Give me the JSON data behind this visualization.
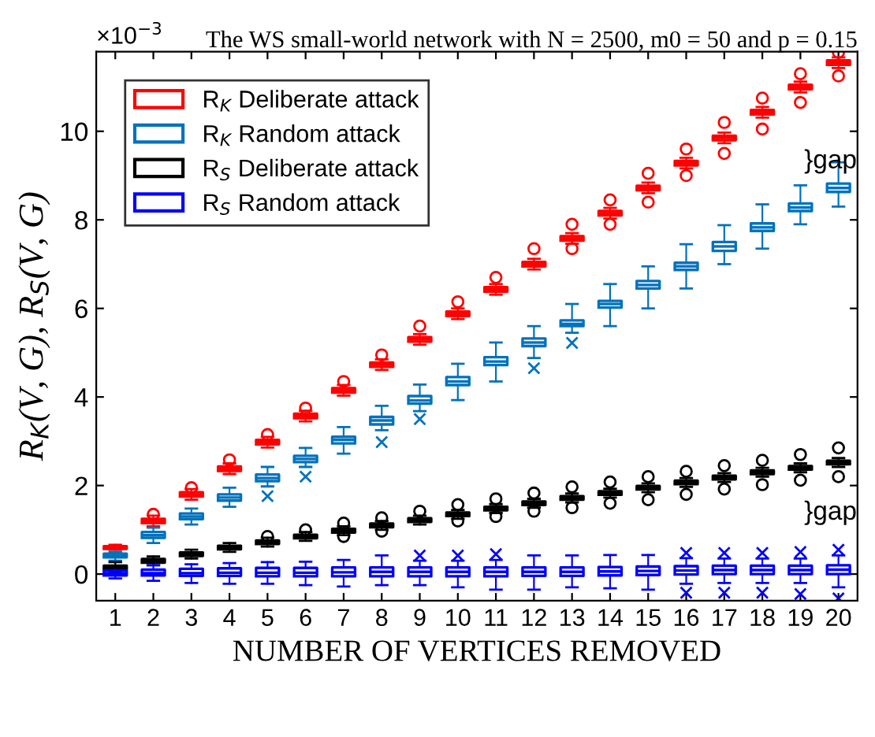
{
  "chart_data": {
    "type": "box",
    "title": "The WS small-world network with N = 2500, m0 = 50 and p = 0.15",
    "xlabel": "NUMBER OF VERTICES REMOVED",
    "ylabel": "R$_{K}$(V, G), R$_{S}$(V, G)",
    "categories": [
      "1",
      "2",
      "3",
      "4",
      "5",
      "6",
      "7",
      "8",
      "9",
      "10",
      "11",
      "12",
      "13",
      "14",
      "15",
      "16",
      "17",
      "18",
      "19",
      "20"
    ],
    "ylim": [
      -0.6,
      11.8
    ],
    "yticks": [
      0,
      2,
      4,
      6,
      8,
      10
    ],
    "legend": "top left",
    "annotations": [
      "×10$^{−3}$",
      "}gap",
      "}gap"
    ],
    "series": [
      {
        "name": "R$_{K}$ Deliberate attack",
        "color": "#ff0000",
        "marker": "circle",
        "boxes": [
          {
            "low": 0.55,
            "q1": 0.57,
            "median": 0.6,
            "q3": 0.63,
            "high": 0.66
          },
          {
            "low": 1.08,
            "q1": 1.15,
            "median": 1.2,
            "q3": 1.25,
            "high": 1.32,
            "outliers": [
              1.35
            ]
          },
          {
            "low": 1.68,
            "q1": 1.75,
            "median": 1.8,
            "q3": 1.85,
            "high": 1.92,
            "outliers": [
              1.95
            ]
          },
          {
            "low": 2.26,
            "q1": 2.33,
            "median": 2.38,
            "q3": 2.43,
            "high": 2.5,
            "outliers": [
              2.58
            ]
          },
          {
            "low": 2.86,
            "q1": 2.93,
            "median": 2.98,
            "q3": 3.03,
            "high": 3.1,
            "outliers": [
              3.15
            ]
          },
          {
            "low": 3.45,
            "q1": 3.52,
            "median": 3.57,
            "q3": 3.62,
            "high": 3.69,
            "outliers": [
              3.75
            ]
          },
          {
            "low": 4.03,
            "q1": 4.1,
            "median": 4.15,
            "q3": 4.2,
            "high": 4.27,
            "outliers": [
              4.35
            ]
          },
          {
            "low": 4.61,
            "q1": 4.68,
            "median": 4.73,
            "q3": 4.78,
            "high": 4.85,
            "outliers": [
              4.95
            ]
          },
          {
            "low": 5.18,
            "q1": 5.25,
            "median": 5.3,
            "q3": 5.35,
            "high": 5.42,
            "outliers": [
              5.6
            ]
          },
          {
            "low": 5.76,
            "q1": 5.83,
            "median": 5.88,
            "q3": 5.93,
            "high": 6.0,
            "outliers": [
              6.15
            ]
          },
          {
            "low": 6.31,
            "q1": 6.38,
            "median": 6.43,
            "q3": 6.48,
            "high": 6.55,
            "outliers": [
              6.7
            ]
          },
          {
            "low": 6.88,
            "q1": 6.95,
            "median": 7.0,
            "q3": 7.05,
            "high": 7.12,
            "outliers": [
              7.35
            ]
          },
          {
            "low": 7.46,
            "q1": 7.53,
            "median": 7.58,
            "q3": 7.63,
            "high": 7.7,
            "outliers": [
              7.9,
              7.35
            ]
          },
          {
            "low": 8.03,
            "q1": 8.1,
            "median": 8.15,
            "q3": 8.2,
            "high": 8.27,
            "outliers": [
              8.45,
              7.9
            ]
          },
          {
            "low": 8.6,
            "q1": 8.67,
            "median": 8.72,
            "q3": 8.77,
            "high": 8.84,
            "outliers": [
              9.05,
              8.4
            ]
          },
          {
            "low": 9.16,
            "q1": 9.23,
            "median": 9.28,
            "q3": 9.33,
            "high": 9.4,
            "outliers": [
              9.6,
              9.0
            ]
          },
          {
            "low": 9.73,
            "q1": 9.8,
            "median": 9.85,
            "q3": 9.9,
            "high": 9.97,
            "outliers": [
              10.2,
              9.5
            ]
          },
          {
            "low": 10.31,
            "q1": 10.38,
            "median": 10.43,
            "q3": 10.48,
            "high": 10.55,
            "outliers": [
              10.75,
              10.05
            ]
          },
          {
            "low": 10.88,
            "q1": 10.95,
            "median": 11.0,
            "q3": 11.05,
            "high": 11.12,
            "outliers": [
              11.3,
              10.65
            ]
          },
          {
            "low": 11.43,
            "q1": 11.5,
            "median": 11.55,
            "q3": 11.6,
            "high": 11.67,
            "outliers": [
              11.78,
              11.25
            ]
          }
        ]
      },
      {
        "name": "R$_{K}$ Random attack",
        "color": "#0072bd",
        "marker": "cross",
        "boxes": [
          {
            "low": 0.3,
            "q1": 0.38,
            "median": 0.42,
            "q3": 0.46,
            "high": 0.5
          },
          {
            "low": 0.7,
            "q1": 0.82,
            "median": 0.88,
            "q3": 0.95,
            "high": 1.05
          },
          {
            "low": 1.12,
            "q1": 1.24,
            "median": 1.3,
            "q3": 1.37,
            "high": 1.48
          },
          {
            "low": 1.52,
            "q1": 1.66,
            "median": 1.73,
            "q3": 1.8,
            "high": 1.95
          },
          {
            "low": 1.98,
            "q1": 2.1,
            "median": 2.17,
            "q3": 2.25,
            "high": 2.42,
            "outliers": [
              1.76
            ]
          },
          {
            "low": 2.42,
            "q1": 2.53,
            "median": 2.6,
            "q3": 2.67,
            "high": 2.85,
            "outliers": [
              2.2
            ]
          },
          {
            "low": 2.72,
            "q1": 2.95,
            "median": 3.03,
            "q3": 3.1,
            "high": 3.32
          },
          {
            "low": 3.25,
            "q1": 3.38,
            "median": 3.47,
            "q3": 3.55,
            "high": 3.8,
            "outliers": [
              2.98
            ]
          },
          {
            "low": 3.68,
            "q1": 3.85,
            "median": 3.92,
            "q3": 4.02,
            "high": 4.28,
            "outliers": [
              3.5
            ]
          },
          {
            "low": 3.93,
            "q1": 4.27,
            "median": 4.35,
            "q3": 4.45,
            "high": 4.75
          },
          {
            "low": 4.35,
            "q1": 4.72,
            "median": 4.8,
            "q3": 4.9,
            "high": 5.23
          },
          {
            "low": 4.88,
            "q1": 5.15,
            "median": 5.23,
            "q3": 5.32,
            "high": 5.6,
            "outliers": [
              4.65
            ]
          },
          {
            "low": 5.45,
            "q1": 5.6,
            "median": 5.65,
            "q3": 5.73,
            "high": 6.1,
            "outliers": [
              5.22
            ]
          },
          {
            "low": 5.6,
            "q1": 6.02,
            "median": 6.1,
            "q3": 6.17,
            "high": 6.55
          },
          {
            "low": 6.0,
            "q1": 6.45,
            "median": 6.53,
            "q3": 6.62,
            "high": 6.95
          },
          {
            "low": 6.45,
            "q1": 6.87,
            "median": 6.95,
            "q3": 7.03,
            "high": 7.45
          },
          {
            "low": 7.0,
            "q1": 7.3,
            "median": 7.4,
            "q3": 7.5,
            "high": 7.88
          },
          {
            "low": 7.35,
            "q1": 7.75,
            "median": 7.83,
            "q3": 7.92,
            "high": 8.35
          },
          {
            "low": 7.9,
            "q1": 8.2,
            "median": 8.28,
            "q3": 8.37,
            "high": 8.78
          },
          {
            "low": 8.3,
            "q1": 8.63,
            "median": 8.72,
            "q3": 8.82,
            "high": 9.3
          }
        ]
      },
      {
        "name": "R$_{S}$ Deliberate attack",
        "color": "#000000",
        "marker": "circle",
        "boxes": [
          {
            "low": 0.03,
            "q1": 0.11,
            "median": 0.15,
            "q3": 0.19,
            "high": 0.27
          },
          {
            "low": 0.2,
            "q1": 0.26,
            "median": 0.3,
            "q3": 0.34,
            "high": 0.4
          },
          {
            "low": 0.35,
            "q1": 0.41,
            "median": 0.45,
            "q3": 0.49,
            "high": 0.55
          },
          {
            "low": 0.5,
            "q1": 0.56,
            "median": 0.6,
            "q3": 0.64,
            "high": 0.7
          },
          {
            "low": 0.62,
            "q1": 0.68,
            "median": 0.72,
            "q3": 0.76,
            "high": 0.82,
            "outliers": [
              0.85
            ]
          },
          {
            "low": 0.75,
            "q1": 0.81,
            "median": 0.85,
            "q3": 0.89,
            "high": 0.95,
            "outliers": [
              1.0
            ]
          },
          {
            "low": 0.88,
            "q1": 0.94,
            "median": 0.98,
            "q3": 1.02,
            "high": 1.08,
            "outliers": [
              1.15,
              0.85
            ]
          },
          {
            "low": 1.0,
            "q1": 1.06,
            "median": 1.1,
            "q3": 1.14,
            "high": 1.2,
            "outliers": [
              1.27,
              0.97
            ]
          },
          {
            "low": 1.12,
            "q1": 1.18,
            "median": 1.22,
            "q3": 1.26,
            "high": 1.32,
            "outliers": [
              1.42
            ]
          },
          {
            "low": 1.25,
            "q1": 1.31,
            "median": 1.35,
            "q3": 1.39,
            "high": 1.45,
            "outliers": [
              1.57,
              1.2
            ]
          },
          {
            "low": 1.38,
            "q1": 1.44,
            "median": 1.48,
            "q3": 1.52,
            "high": 1.58,
            "outliers": [
              1.7,
              1.3
            ]
          },
          {
            "low": 1.5,
            "q1": 1.56,
            "median": 1.6,
            "q3": 1.64,
            "high": 1.7,
            "outliers": [
              1.83,
              1.42
            ]
          },
          {
            "low": 1.62,
            "q1": 1.68,
            "median": 1.72,
            "q3": 1.76,
            "high": 1.82,
            "outliers": [
              1.97,
              1.5
            ]
          },
          {
            "low": 1.73,
            "q1": 1.79,
            "median": 1.83,
            "q3": 1.87,
            "high": 1.93,
            "outliers": [
              2.08,
              1.6
            ]
          },
          {
            "low": 1.85,
            "q1": 1.91,
            "median": 1.95,
            "q3": 1.99,
            "high": 2.05,
            "outliers": [
              2.2,
              1.68
            ]
          },
          {
            "low": 1.97,
            "q1": 2.03,
            "median": 2.07,
            "q3": 2.11,
            "high": 2.17,
            "outliers": [
              2.32,
              1.8
            ]
          },
          {
            "low": 2.08,
            "q1": 2.14,
            "median": 2.18,
            "q3": 2.22,
            "high": 2.28,
            "outliers": [
              2.45,
              1.92
            ]
          },
          {
            "low": 2.2,
            "q1": 2.26,
            "median": 2.3,
            "q3": 2.34,
            "high": 2.4,
            "outliers": [
              2.57,
              2.02
            ]
          },
          {
            "low": 2.3,
            "q1": 2.36,
            "median": 2.4,
            "q3": 2.44,
            "high": 2.5,
            "outliers": [
              2.7,
              2.12
            ]
          },
          {
            "low": 2.42,
            "q1": 2.48,
            "median": 2.52,
            "q3": 2.56,
            "high": 2.62,
            "outliers": [
              2.85,
              2.2
            ]
          }
        ]
      },
      {
        "name": "R$_{S}$ Random attack",
        "color": "#0000ff",
        "marker": "cross",
        "boxes": [
          {
            "low": -0.1,
            "q1": -0.03,
            "median": 0.02,
            "q3": 0.08,
            "high": 0.15
          },
          {
            "low": -0.15,
            "q1": -0.03,
            "median": 0.02,
            "q3": 0.1,
            "high": 0.2
          },
          {
            "low": -0.2,
            "q1": -0.04,
            "median": 0.02,
            "q3": 0.12,
            "high": 0.22
          },
          {
            "low": -0.22,
            "q1": -0.04,
            "median": 0.03,
            "q3": 0.13,
            "high": 0.25
          },
          {
            "low": -0.22,
            "q1": -0.05,
            "median": 0.03,
            "q3": 0.14,
            "high": 0.27
          },
          {
            "low": -0.25,
            "q1": -0.05,
            "median": 0.03,
            "q3": 0.14,
            "high": 0.28
          },
          {
            "low": -0.28,
            "q1": -0.05,
            "median": 0.04,
            "q3": 0.15,
            "high": 0.32
          },
          {
            "low": -0.25,
            "q1": -0.05,
            "median": 0.05,
            "q3": 0.15,
            "high": 0.42
          },
          {
            "low": -0.25,
            "q1": -0.05,
            "median": 0.05,
            "q3": 0.15,
            "high": 0.3,
            "outliers": [
              0.42
            ]
          },
          {
            "low": -0.3,
            "q1": -0.05,
            "median": 0.05,
            "q3": 0.15,
            "high": 0.3,
            "outliers": [
              0.42
            ]
          },
          {
            "low": -0.35,
            "q1": -0.05,
            "median": 0.05,
            "q3": 0.15,
            "high": 0.32,
            "outliers": [
              0.45
            ]
          },
          {
            "low": -0.35,
            "q1": -0.04,
            "median": 0.05,
            "q3": 0.15,
            "high": 0.42
          },
          {
            "low": -0.3,
            "q1": -0.04,
            "median": 0.05,
            "q3": 0.15,
            "high": 0.42
          },
          {
            "low": -0.32,
            "q1": -0.03,
            "median": 0.06,
            "q3": 0.16,
            "high": 0.43
          },
          {
            "low": -0.35,
            "q1": -0.02,
            "median": 0.07,
            "q3": 0.17,
            "high": 0.43
          },
          {
            "low": -0.22,
            "q1": -0.01,
            "median": 0.08,
            "q3": 0.18,
            "high": 0.36,
            "outliers": [
              0.48,
              -0.42
            ]
          },
          {
            "low": -0.2,
            "q1": 0.0,
            "median": 0.09,
            "q3": 0.19,
            "high": 0.35,
            "outliers": [
              0.48,
              -0.42
            ]
          },
          {
            "low": -0.2,
            "q1": 0.0,
            "median": 0.09,
            "q3": 0.19,
            "high": 0.35,
            "outliers": [
              0.48,
              -0.42
            ]
          },
          {
            "low": -0.2,
            "q1": 0.0,
            "median": 0.09,
            "q3": 0.19,
            "high": 0.35,
            "outliers": [
              0.5,
              -0.45
            ]
          },
          {
            "low": -0.3,
            "q1": 0.0,
            "median": 0.1,
            "q3": 0.2,
            "high": 0.42,
            "outliers": [
              0.55,
              -0.55
            ]
          }
        ]
      }
    ]
  }
}
